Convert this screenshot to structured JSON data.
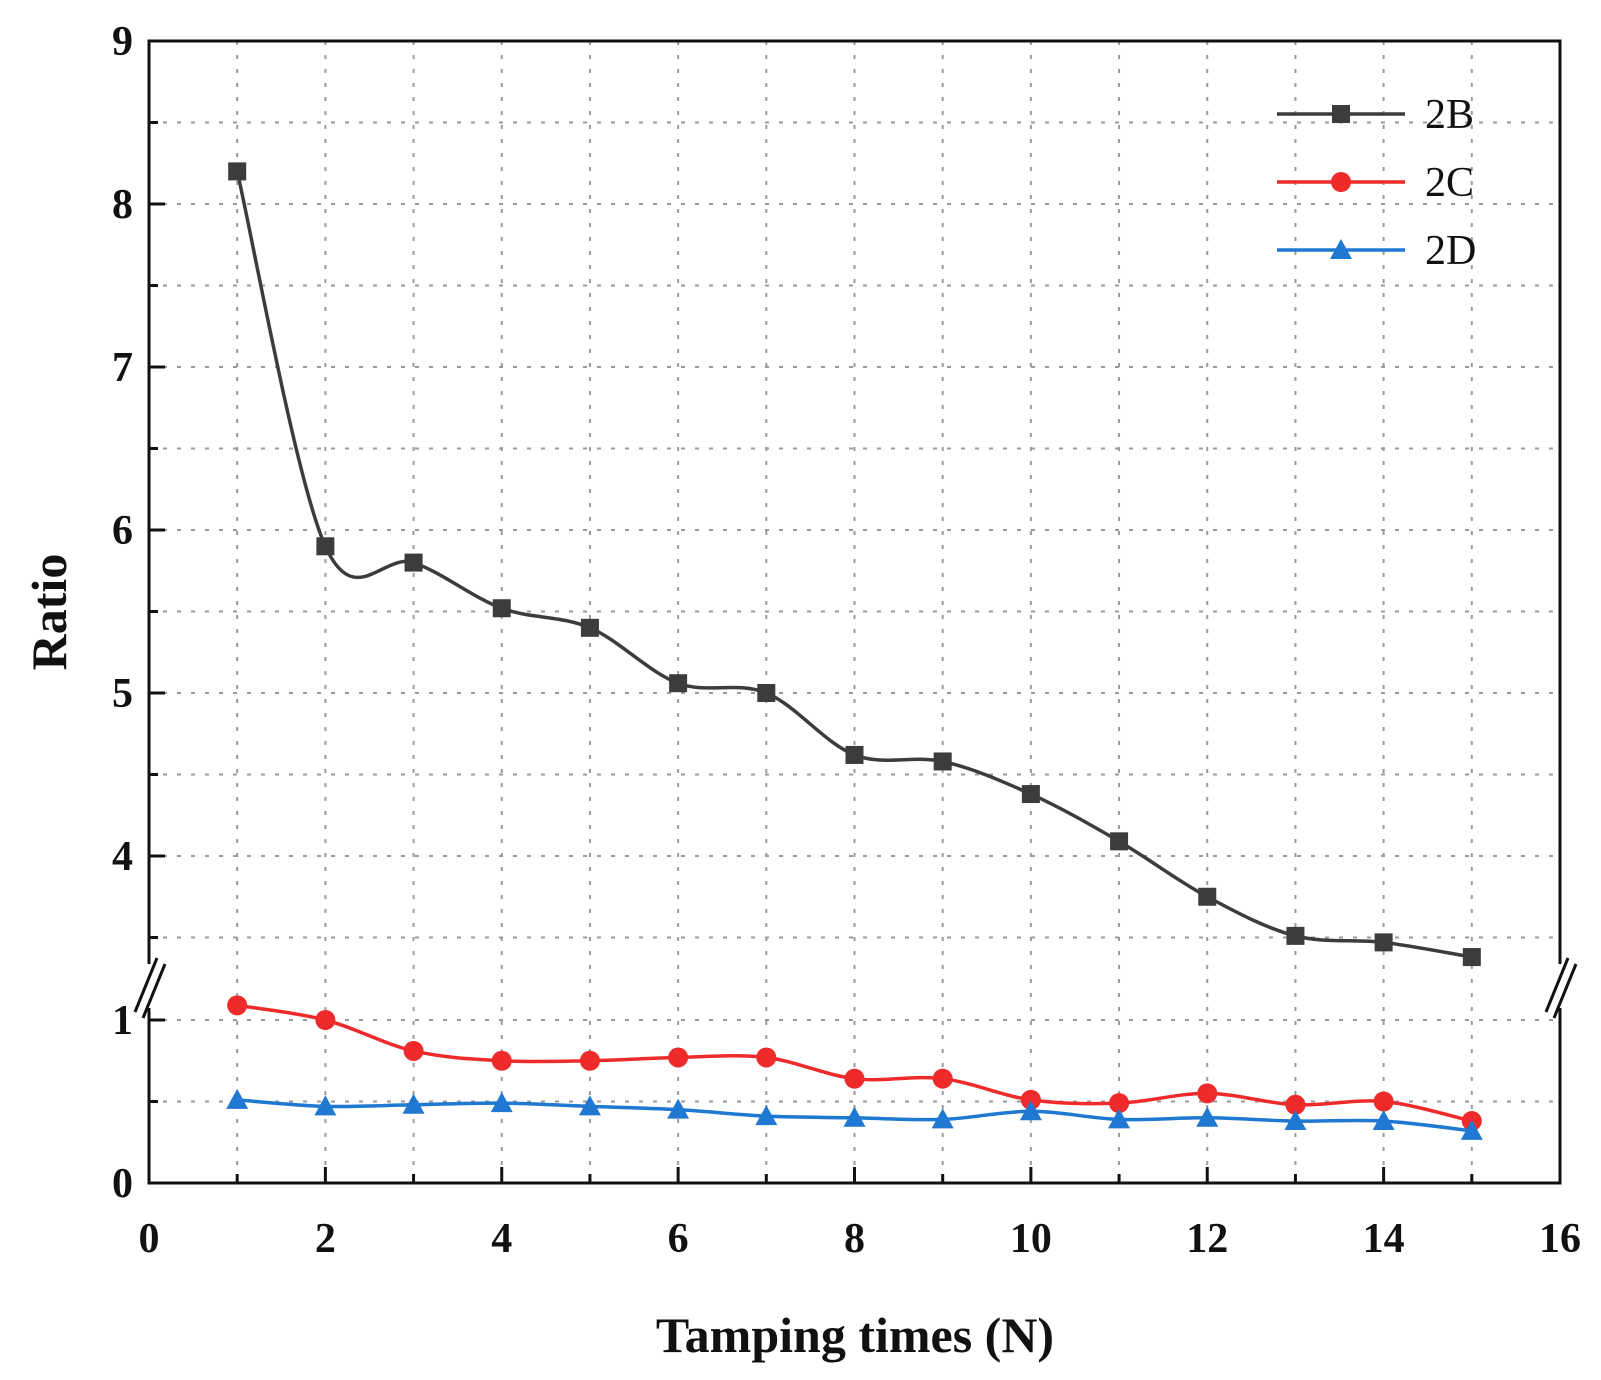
{
  "chart_data": {
    "type": "line",
    "title": "",
    "xlabel": "Tamping times (N)",
    "ylabel": "Ratio",
    "xlim": [
      0,
      16
    ],
    "x_ticks": [
      "0",
      "2",
      "4",
      "6",
      "8",
      "10",
      "12",
      "14",
      "16"
    ],
    "y_ticks_lower": [
      "0",
      "1"
    ],
    "y_ticks_upper": [
      "4",
      "5",
      "6",
      "7",
      "8",
      "9"
    ],
    "y_axis_break": {
      "lower_range": [
        0,
        1.2
      ],
      "upper_range": [
        3.5,
        9
      ]
    },
    "grid": true,
    "legend_position": "top-right",
    "x": [
      1,
      2,
      3,
      4,
      5,
      6,
      7,
      8,
      9,
      10,
      11,
      12,
      13,
      14,
      15
    ],
    "series": [
      {
        "name": "2B",
        "marker": "square",
        "color": "#3c3c3c",
        "values": [
          8.2,
          5.9,
          5.8,
          5.52,
          5.4,
          5.06,
          5.0,
          4.62,
          4.58,
          4.38,
          4.09,
          3.75,
          3.51,
          3.47,
          3.38
        ]
      },
      {
        "name": "2C",
        "marker": "circle",
        "color": "#ee2a2a",
        "values": [
          1.09,
          1.0,
          0.81,
          0.75,
          0.75,
          0.77,
          0.77,
          0.64,
          0.64,
          0.51,
          0.49,
          0.55,
          0.48,
          0.5,
          0.38
        ]
      },
      {
        "name": "2D",
        "marker": "triangle",
        "color": "#1f78d1",
        "values": [
          0.51,
          0.47,
          0.48,
          0.49,
          0.47,
          0.45,
          0.41,
          0.4,
          0.39,
          0.44,
          0.39,
          0.4,
          0.38,
          0.38,
          0.32
        ]
      }
    ]
  }
}
